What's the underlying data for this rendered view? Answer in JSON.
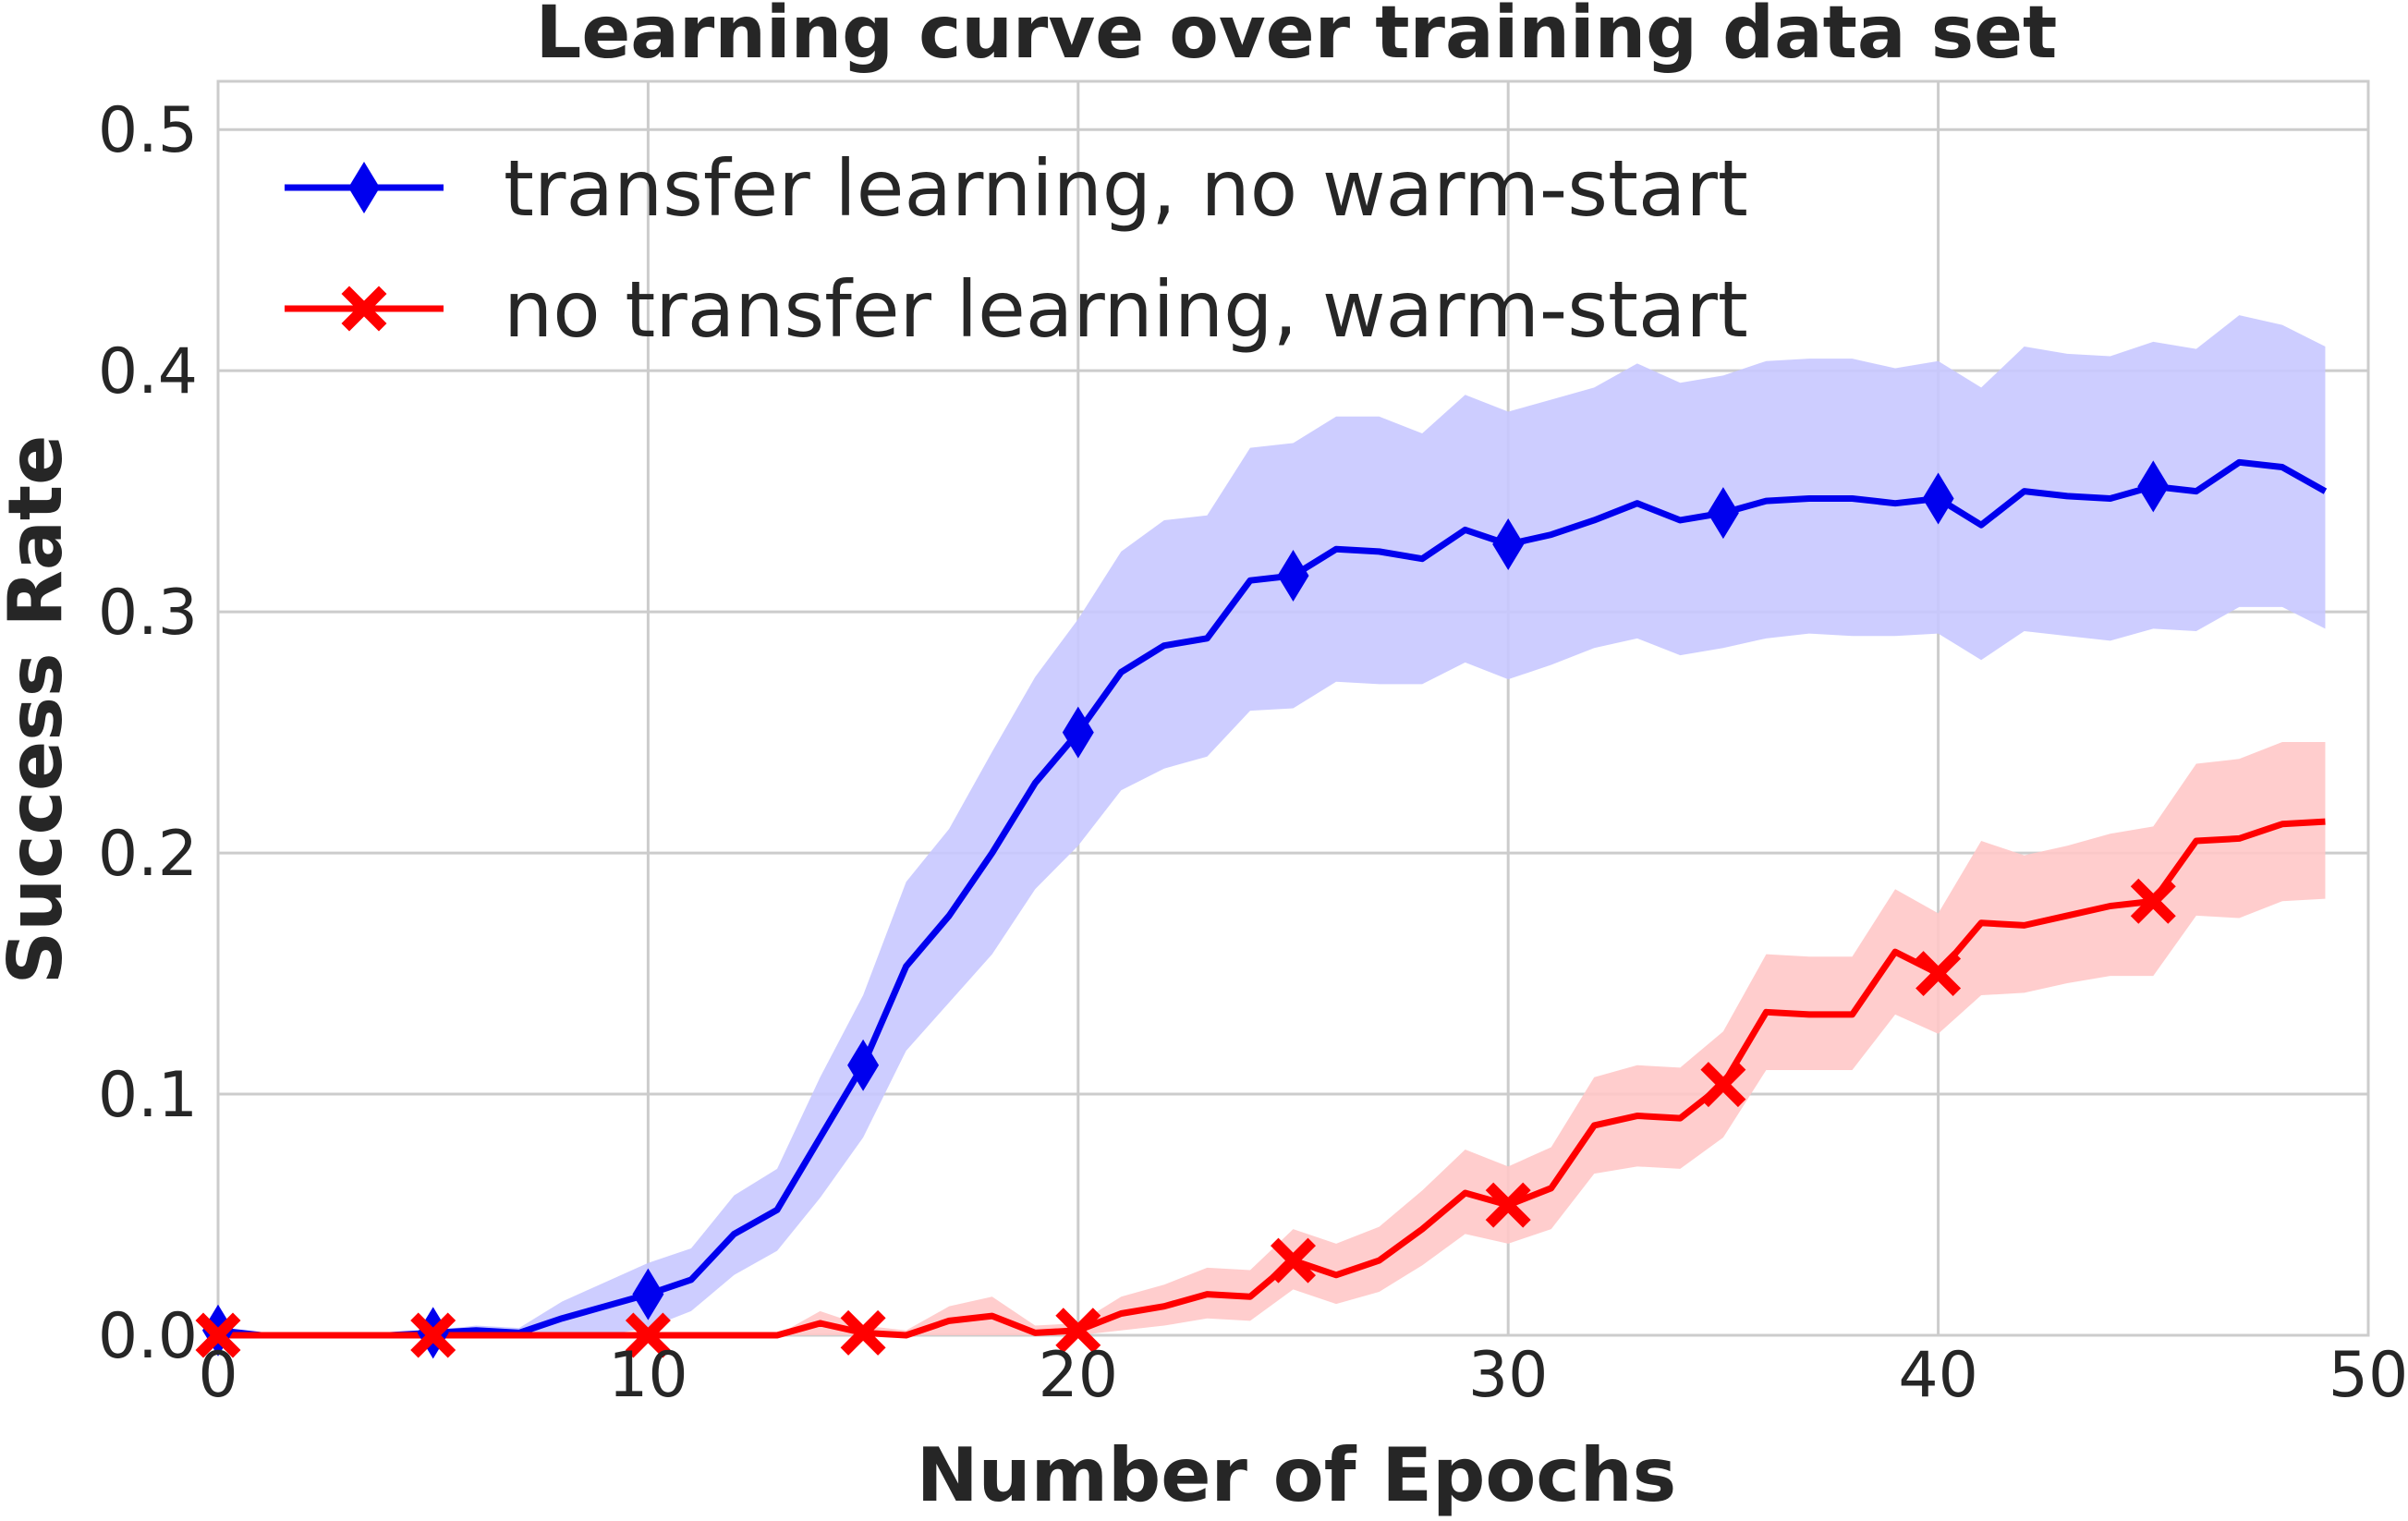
{
  "chart_data": {
    "type": "line",
    "title": "Learning curve over training data set",
    "xlabel": "Number of Epochs",
    "ylabel": "Success Rate",
    "xlim": [
      0,
      50
    ],
    "ylim": [
      0,
      0.52
    ],
    "xticks": [
      0,
      10,
      20,
      30,
      40,
      50
    ],
    "xtick_labels": [
      "0",
      "10",
      "20",
      "30",
      "40",
      "50"
    ],
    "yticks": [
      0.0,
      0.1,
      0.2,
      0.3,
      0.4,
      0.5
    ],
    "ytick_labels": [
      "0.0",
      "0.1",
      "0.2",
      "0.3",
      "0.4",
      "0.5"
    ],
    "grid": true,
    "legend_position": "top-left",
    "x": [
      0,
      1,
      2,
      3,
      4,
      5,
      6,
      7,
      8,
      9,
      10,
      11,
      12,
      13,
      14,
      15,
      16,
      17,
      18,
      19,
      20,
      21,
      22,
      23,
      24,
      25,
      26,
      27,
      28,
      29,
      30,
      31,
      32,
      33,
      34,
      35,
      36,
      37,
      38,
      39,
      40,
      41,
      42,
      43,
      44,
      45,
      46,
      47,
      48,
      49
    ],
    "series": [
      {
        "name": "transfer learning, no warm-start",
        "color": "#0000ee",
        "band_color": "#c8c8ff",
        "marker": "diamond",
        "marker_every": 5,
        "values": [
          0.002,
          0,
          0,
          0,
          0,
          0.001,
          0.002,
          0.001,
          0.007,
          0.012,
          0.017,
          0.023,
          0.042,
          0.052,
          0.082,
          0.112,
          0.153,
          0.174,
          0.2,
          0.229,
          0.25,
          0.275,
          0.286,
          0.289,
          0.313,
          0.315,
          0.326,
          0.325,
          0.322,
          0.334,
          0.328,
          0.332,
          0.338,
          0.345,
          0.338,
          0.341,
          0.346,
          0.347,
          0.347,
          0.345,
          0.347,
          0.336,
          0.35,
          0.348,
          0.347,
          0.352,
          0.35,
          0.362,
          0.36,
          0.35
        ],
        "lower": [
          0,
          0,
          0,
          0,
          0,
          0,
          0,
          0,
          0,
          0,
          0.003,
          0.01,
          0.025,
          0.035,
          0.057,
          0.082,
          0.118,
          0.138,
          0.158,
          0.185,
          0.203,
          0.226,
          0.235,
          0.24,
          0.259,
          0.26,
          0.271,
          0.27,
          0.27,
          0.279,
          0.272,
          0.278,
          0.285,
          0.289,
          0.282,
          0.285,
          0.289,
          0.291,
          0.29,
          0.29,
          0.291,
          0.28,
          0.292,
          0.29,
          0.288,
          0.293,
          0.292,
          0.302,
          0.302,
          0.293
        ],
        "upper": [
          0.004,
          0,
          0,
          0,
          0,
          0.002,
          0.004,
          0.003,
          0.014,
          0.022,
          0.03,
          0.036,
          0.058,
          0.069,
          0.107,
          0.141,
          0.188,
          0.21,
          0.242,
          0.273,
          0.297,
          0.325,
          0.338,
          0.34,
          0.368,
          0.37,
          0.381,
          0.381,
          0.374,
          0.39,
          0.383,
          0.388,
          0.393,
          0.403,
          0.395,
          0.398,
          0.404,
          0.405,
          0.405,
          0.401,
          0.404,
          0.393,
          0.41,
          0.407,
          0.406,
          0.412,
          0.409,
          0.423,
          0.419,
          0.41
        ]
      },
      {
        "name": "no transfer learning, warm-start",
        "color": "#ff0000",
        "band_color": "#ffc8c8",
        "marker": "x",
        "marker_every": 5,
        "values": [
          0,
          0,
          0,
          0,
          0,
          0,
          0,
          0,
          0,
          0,
          0,
          0,
          0,
          0,
          0.005,
          0.001,
          0,
          0.006,
          0.008,
          0.001,
          0.002,
          0.009,
          0.012,
          0.017,
          0.016,
          0.031,
          0.025,
          0.031,
          0.044,
          0.059,
          0.054,
          0.061,
          0.087,
          0.091,
          0.09,
          0.104,
          0.134,
          0.133,
          0.133,
          0.159,
          0.15,
          0.171,
          0.17,
          0.174,
          0.178,
          0.18,
          0.205,
          0.206,
          0.212,
          0.213
        ],
        "lower": [
          0,
          0,
          0,
          0,
          0,
          0,
          0,
          0,
          0,
          0,
          0,
          0,
          0,
          0,
          0,
          0,
          0,
          0,
          0,
          0,
          0,
          0.002,
          0.004,
          0.007,
          0.006,
          0.019,
          0.013,
          0.018,
          0.029,
          0.042,
          0.038,
          0.044,
          0.067,
          0.07,
          0.069,
          0.082,
          0.11,
          0.11,
          0.11,
          0.133,
          0.125,
          0.141,
          0.142,
          0.146,
          0.149,
          0.149,
          0.174,
          0.173,
          0.18,
          0.181
        ],
        "upper": [
          0,
          0,
          0,
          0,
          0,
          0,
          0,
          0,
          0,
          0,
          0,
          0,
          0,
          0,
          0.01,
          0.004,
          0.002,
          0.012,
          0.016,
          0.004,
          0.005,
          0.016,
          0.021,
          0.028,
          0.027,
          0.044,
          0.038,
          0.045,
          0.06,
          0.077,
          0.07,
          0.078,
          0.107,
          0.112,
          0.111,
          0.126,
          0.158,
          0.157,
          0.157,
          0.185,
          0.175,
          0.205,
          0.199,
          0.203,
          0.208,
          0.211,
          0.237,
          0.239,
          0.246,
          0.246
        ]
      }
    ]
  }
}
